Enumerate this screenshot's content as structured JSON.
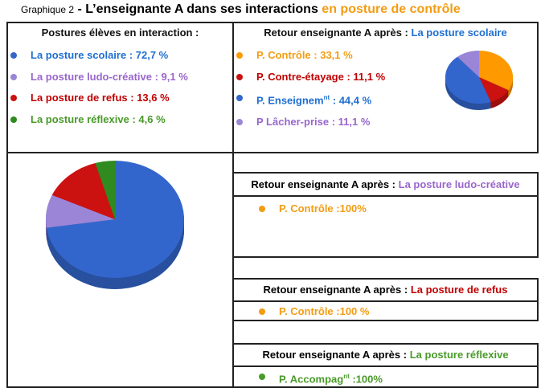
{
  "header": {
    "prefix": "Graphique 2",
    "title": "- L’enseignante A dans ses interactions",
    "highlight": "en posture de contrôle"
  },
  "chart_data": [
    {
      "type": "pie",
      "title": "Postures élèves en interaction :",
      "categories": [
        "La posture scolaire : 72,7 %",
        "La posture ludo-créative : 9,1 %",
        "La posture de refus : 13,6 %",
        "La posture réflexive : 4,6 %"
      ],
      "values": [
        72.7,
        9.1,
        13.6,
        4.6
      ],
      "colors": [
        "#3366cc",
        "#9b85d6",
        "#cc1111",
        "#2f8a1f"
      ]
    },
    {
      "type": "pie",
      "title": [
        "Retour enseignante A après :",
        "La posture scolaire"
      ],
      "categories": [
        "P. Contrôle : 33,1 %",
        "P. Contre-étayage : 11,1 %",
        [
          "P. Enseignem",
          "nt",
          " : 44,4 %"
        ],
        "P Lâcher-prise : 11,1 %"
      ],
      "values": [
        33.1,
        11.1,
        44.4,
        11.1
      ],
      "colors": [
        "#ff9900",
        "#cc1111",
        "#3366cc",
        "#9b85d6"
      ]
    }
  ],
  "feedback": [
    {
      "title": [
        "Retour enseignante A après :",
        "La posture ludo-créative"
      ],
      "item": [
        "P. Contrôle :100%"
      ]
    },
    {
      "title": [
        "Retour enseignante A après :",
        "La posture de refus"
      ],
      "item": [
        "P. Contrôle :100 %"
      ]
    },
    {
      "title": [
        "Retour enseignante A après :",
        "La posture réflexive"
      ],
      "item": [
        "P. Accompag",
        "nt",
        " :100%"
      ]
    }
  ]
}
